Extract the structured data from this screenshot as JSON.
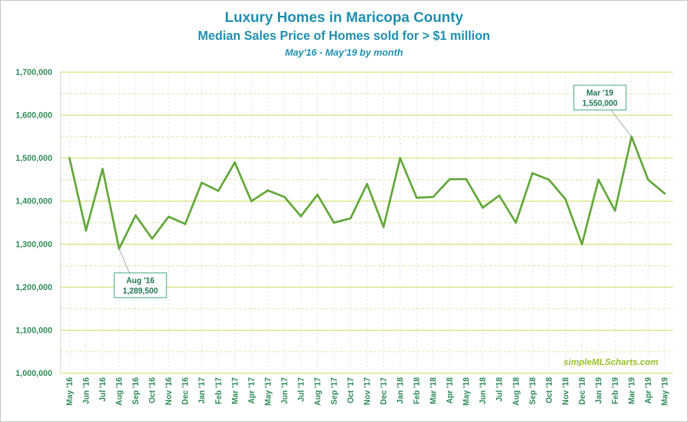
{
  "colors": {
    "title": "#1f8fb0",
    "axis_text": "#2e8b57",
    "line": "#62a83a",
    "major_grid": "#c5d94a",
    "minor_grid": "#d6e39a",
    "watermark": "#9cbf2e",
    "callout_border": "#2e9c6a",
    "callout_text": "#1f7a52"
  },
  "chart_data": {
    "type": "line",
    "title": "Luxury Homes in Maricopa County",
    "subtitle": "Median Sales Price of Homes sold for > $1 million",
    "subtitle2": "May'16 - May'19 by month",
    "watermark": "simpleMLScharts.com",
    "ylim": [
      1000000,
      1700000
    ],
    "yticks": [
      "1,000,000",
      "1,100,000",
      "1,200,000",
      "1,300,000",
      "1,400,000",
      "1,500,000",
      "1,600,000",
      "1,700,000"
    ],
    "y_minor_gridlines": true,
    "categories": [
      "May '16",
      "Jun '16",
      "Jul '16",
      "Aug '16",
      "Sep '16",
      "Oct '16",
      "Nov '16",
      "Dec '16",
      "Jan '17",
      "Feb '17",
      "Mar '17",
      "Apr '17",
      "May '17",
      "Jun '17",
      "Jul '17",
      "Aug '17",
      "Sep '17",
      "Oct '17",
      "Nov '17",
      "Dec '17",
      "Jan '18",
      "Feb '18",
      "Mar '18",
      "Apr '18",
      "May '18",
      "Jun '18",
      "Jul '18",
      "Aug '18",
      "Sep '18",
      "Oct '18",
      "Nov '18",
      "Dec '18",
      "Jan '19",
      "Feb '19",
      "Mar '19",
      "Apr '19",
      "May '19"
    ],
    "series": [
      {
        "values": [
          1500000,
          1332000,
          1475000,
          1289500,
          1367000,
          1313000,
          1364000,
          1347000,
          1443000,
          1424000,
          1490000,
          1400000,
          1425000,
          1410000,
          1365000,
          1415000,
          1350000,
          1360000,
          1440000,
          1340000,
          1500000,
          1408000,
          1410000,
          1451000,
          1451000,
          1385000,
          1413000,
          1350000,
          1465000,
          1450000,
          1405000,
          1300000,
          1450000,
          1378000,
          1550000,
          1450000,
          1418000
        ]
      }
    ],
    "annotations": [
      {
        "index": 3,
        "label": "Aug '16",
        "value_text": "1,289,500",
        "placement": "below-right"
      },
      {
        "index": 34,
        "label": "Mar '19",
        "value_text": "1,550,000",
        "placement": "above-left"
      }
    ],
    "legend": "none"
  }
}
